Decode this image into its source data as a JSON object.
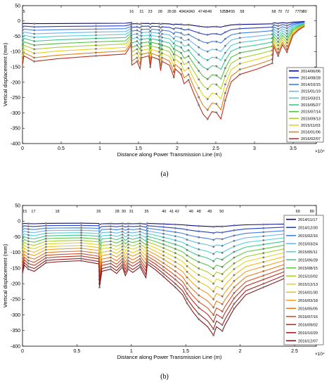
{
  "chart_data": [
    {
      "type": "line",
      "panel_label": "(a)",
      "xlabel": "Distance along Power Transmission Line (m)",
      "ylabel": "Vertical displacement (mm)",
      "x_exponent_label": "×10⁴",
      "xlim": [
        0,
        3.8
      ],
      "ylim": [
        -400,
        50
      ],
      "xticks": [
        "0",
        "0.5",
        "1",
        "1.5",
        "2",
        "2.5",
        "3",
        "3.5"
      ],
      "yticks": [
        "50",
        "0",
        "-50",
        "-100",
        "-150",
        "-200",
        "-250",
        "-300",
        "-350",
        "-400"
      ],
      "point_labels": [
        {
          "text": "5",
          "x": 0.02
        },
        {
          "text": "16",
          "x": 1.41
        },
        {
          "text": "21",
          "x": 1.54
        },
        {
          "text": "23",
          "x": 1.65
        },
        {
          "text": "28",
          "x": 1.78
        },
        {
          "text": "35",
          "x": 1.9
        },
        {
          "text": "38",
          "x": 1.96
        },
        {
          "text": "40",
          "x": 2.05
        },
        {
          "text": "41",
          "x": 2.1
        },
        {
          "text": "42",
          "x": 2.15
        },
        {
          "text": "43",
          "x": 2.2
        },
        {
          "text": "47",
          "x": 2.3
        },
        {
          "text": "48",
          "x": 2.36
        },
        {
          "text": "49",
          "x": 2.42
        },
        {
          "text": "52",
          "x": 2.58
        },
        {
          "text": "53",
          "x": 2.63
        },
        {
          "text": "54",
          "x": 2.66
        },
        {
          "text": "55",
          "x": 2.72
        },
        {
          "text": "58",
          "x": 2.84
        },
        {
          "text": "68",
          "x": 3.25
        },
        {
          "text": "70",
          "x": 3.33
        },
        {
          "text": "72",
          "x": 3.42
        },
        {
          "text": "77",
          "x": 3.55
        },
        {
          "text": "79",
          "x": 3.6
        },
        {
          "text": "80",
          "x": 3.65
        }
      ],
      "series": [
        {
          "name": "2014/06/06",
          "color": "#0a0a8c",
          "min": -20
        },
        {
          "name": "2014/08/28",
          "color": "#1f3fd0",
          "min": -45
        },
        {
          "name": "2014/10/15",
          "color": "#3f7fe6",
          "min": -72
        },
        {
          "name": "2015/01/19",
          "color": "#68b7f0",
          "min": -100
        },
        {
          "name": "2015/03/21",
          "color": "#4fd0d8",
          "min": -128
        },
        {
          "name": "2015/05/27",
          "color": "#3cc890",
          "min": -158
        },
        {
          "name": "2015/07/14",
          "color": "#50c040",
          "min": -190
        },
        {
          "name": "2015/09/13",
          "color": "#a8d030",
          "min": -222
        },
        {
          "name": "2015/11/03",
          "color": "#e8d020",
          "min": -255
        },
        {
          "name": "2016/01/06",
          "color": "#e08020",
          "min": -290
        },
        {
          "name": "2016/02/07",
          "color": "#b83020",
          "min": -320
        }
      ]
    },
    {
      "type": "line",
      "panel_label": "(b)",
      "xlabel": "Distance along Power Transmission Line (m)",
      "ylabel": "Vertical displacement (mm)",
      "x_exponent_label": "×10⁴",
      "xlim": [
        0,
        2.7
      ],
      "ylim": [
        -400,
        50
      ],
      "xticks": [
        "0",
        "0.5",
        "1",
        "1.5",
        "2",
        "2.5"
      ],
      "yticks": [
        "50",
        "0",
        "-50",
        "-100",
        "-150",
        "-200",
        "-250",
        "-300",
        "-350",
        "-400"
      ],
      "point_labels": [
        {
          "text": "15",
          "x": 0.02
        },
        {
          "text": "17",
          "x": 0.1
        },
        {
          "text": "18",
          "x": 0.32
        },
        {
          "text": "26",
          "x": 0.7
        },
        {
          "text": "28",
          "x": 0.87
        },
        {
          "text": "30",
          "x": 0.93
        },
        {
          "text": "31",
          "x": 1.0
        },
        {
          "text": "35",
          "x": 1.14
        },
        {
          "text": "40",
          "x": 1.3
        },
        {
          "text": "41",
          "x": 1.37
        },
        {
          "text": "42",
          "x": 1.42
        },
        {
          "text": "46",
          "x": 1.55
        },
        {
          "text": "48",
          "x": 1.62
        },
        {
          "text": "49",
          "x": 1.72
        },
        {
          "text": "50",
          "x": 1.83
        },
        {
          "text": "69",
          "x": 2.53
        },
        {
          "text": "80",
          "x": 2.66
        }
      ],
      "series": [
        {
          "name": "2014/11/17",
          "color": "#0a0a8c",
          "min": -18
        },
        {
          "name": "2014/12/30",
          "color": "#1f3fd0",
          "min": -38
        },
        {
          "name": "2015/02/16",
          "color": "#3f7fe6",
          "min": -60
        },
        {
          "name": "2015/03/24",
          "color": "#68b7f0",
          "min": -82
        },
        {
          "name": "2015/05/11",
          "color": "#4fd0d8",
          "min": -105
        },
        {
          "name": "2015/06/28",
          "color": "#3cc890",
          "min": -128
        },
        {
          "name": "2015/08/15",
          "color": "#60c848",
          "min": -152
        },
        {
          "name": "2015/10/02",
          "color": "#a8d030",
          "min": -176
        },
        {
          "name": "2015/12/13",
          "color": "#e0d828",
          "min": -200
        },
        {
          "name": "2016/01/30",
          "color": "#f0c020",
          "min": -225
        },
        {
          "name": "2016/03/18",
          "color": "#f0a020",
          "min": -250
        },
        {
          "name": "2016/05/05",
          "color": "#e87a20",
          "min": -276
        },
        {
          "name": "2016/07/16",
          "color": "#d85020",
          "min": -300
        },
        {
          "name": "2016/09/02",
          "color": "#c03020",
          "min": -322
        },
        {
          "name": "2016/10/20",
          "color": "#a02020",
          "min": -345
        },
        {
          "name": "2016/12/07",
          "color": "#801818",
          "min": -365
        }
      ]
    }
  ]
}
